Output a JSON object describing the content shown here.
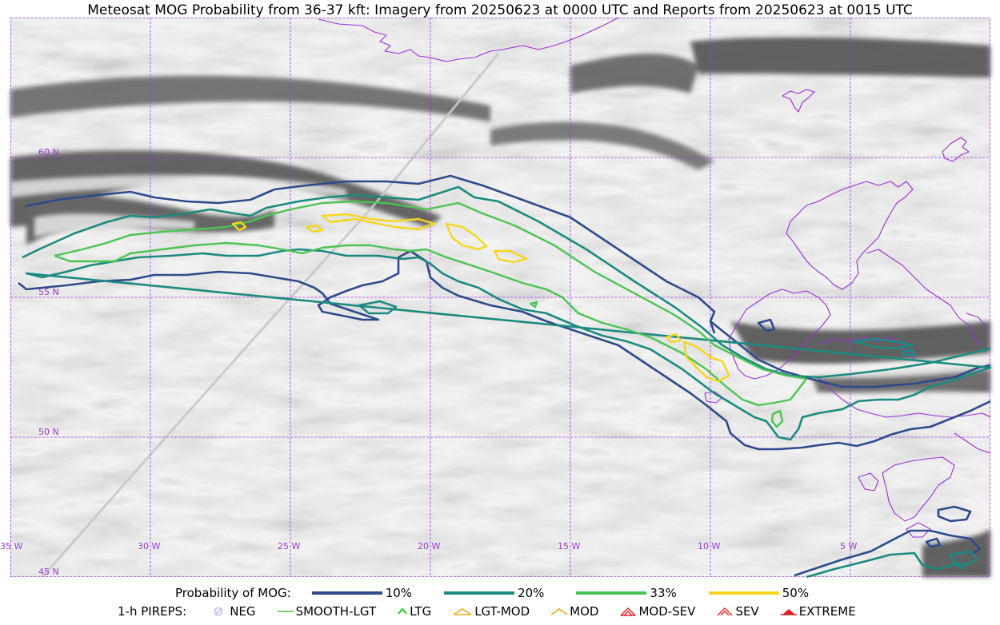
{
  "title": "Meteosat MOG Probability from 36-37 kft: Imagery from 20250623 at 0000 UTC and Reports from 20250623 at 0015 UTC",
  "map": {
    "lat_labels": [
      "60 N",
      "55 N",
      "50 N",
      "45 N"
    ],
    "lon_labels": [
      "35 W",
      "30 W",
      "25 W",
      "20 W",
      "15 W",
      "10 W",
      "5 W"
    ],
    "colors": {
      "grid": "#9b3bd6",
      "coast": "#9b30d9",
      "track": "#c8c8c8"
    }
  },
  "legend_probability": {
    "title": "Probability of MOG:",
    "items": [
      {
        "label": "10%",
        "color": "#2e4a8a"
      },
      {
        "label": "20%",
        "color": "#1b8a80"
      },
      {
        "label": "33%",
        "color": "#4cc454"
      },
      {
        "label": "50%",
        "color": "#f7d51c"
      }
    ]
  },
  "legend_pireps": {
    "title": "1-h PIREPS:",
    "items": [
      {
        "label": "NEG",
        "icon": "neg-icon",
        "color": "#b9b9f2"
      },
      {
        "label": "SMOOTH-LGT",
        "icon": "smooth-lgt-icon",
        "color": "#3cc43c"
      },
      {
        "label": "LTG",
        "icon": "ltg-icon",
        "color": "#1fd11f"
      },
      {
        "label": "LGT-MOD",
        "icon": "lgt-mod-icon",
        "color": "#f0a818"
      },
      {
        "label": "MOD",
        "icon": "mod-icon",
        "color": "#f0a818"
      },
      {
        "label": "MOD-SEV",
        "icon": "mod-sev-icon",
        "color": "#e02020"
      },
      {
        "label": "SEV",
        "icon": "sev-icon",
        "color": "#e02020"
      },
      {
        "label": "EXTREME",
        "icon": "extreme-icon",
        "color": "#e02020"
      }
    ]
  }
}
